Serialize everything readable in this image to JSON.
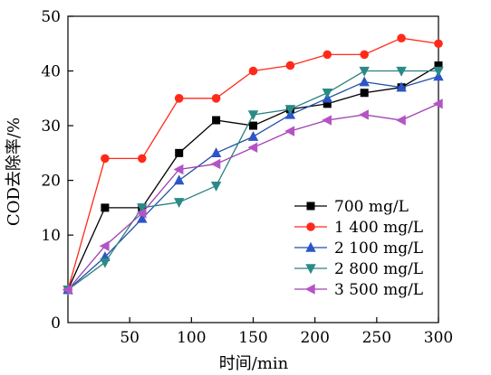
{
  "chart_data": {
    "type": "line",
    "title": "",
    "xlabel": "时间/min",
    "ylabel": "COD去除率/%",
    "xlim": [
      0,
      300
    ],
    "ylim": [
      -6,
      50
    ],
    "x_ticks": [
      50,
      100,
      150,
      200,
      250,
      300
    ],
    "x_tick_labels": [
      "50",
      "100",
      "150",
      "200",
      "250",
      "300"
    ],
    "y_ticks": [
      10,
      20,
      30,
      40,
      50
    ],
    "y_tick_labels": [
      "10",
      "20",
      "30",
      "40",
      "50"
    ],
    "origin_label": "0",
    "grid": false,
    "legend_position": "bottom-right",
    "x": [
      0,
      30,
      60,
      90,
      120,
      150,
      180,
      210,
      240,
      270,
      300
    ],
    "series": [
      {
        "name": "700 mg/L",
        "marker": "square",
        "color": "#000000",
        "marker_color": "#000000",
        "values": [
          0,
          15,
          15,
          25,
          31,
          30,
          33,
          34,
          36,
          37,
          41
        ]
      },
      {
        "name": "1 400 mg/L",
        "marker": "circle",
        "color": "#ff2a1a",
        "marker_color": "#ff2a1a",
        "values": [
          0,
          24,
          24,
          35,
          35,
          40,
          41,
          43,
          43,
          46,
          45
        ]
      },
      {
        "name": "2 100 mg/L",
        "marker": "triangle-up",
        "color": "#1f4fa8",
        "marker_color": "#2c55c8",
        "values": [
          0,
          6,
          13,
          20,
          25,
          28,
          32,
          35,
          38,
          37,
          39
        ]
      },
      {
        "name": "2 800 mg/L",
        "marker": "triangle-down",
        "color": "#2a8080",
        "marker_color": "#2a8a86",
        "values": [
          0,
          5,
          15,
          16,
          19,
          32,
          33,
          36,
          40,
          40,
          40
        ]
      },
      {
        "name": "3 500 mg/L",
        "marker": "triangle-left",
        "color": "#a040b0",
        "marker_color": "#b454c4",
        "values": [
          0,
          8,
          14,
          22,
          23,
          26,
          29,
          31,
          32,
          31,
          34
        ]
      }
    ]
  }
}
